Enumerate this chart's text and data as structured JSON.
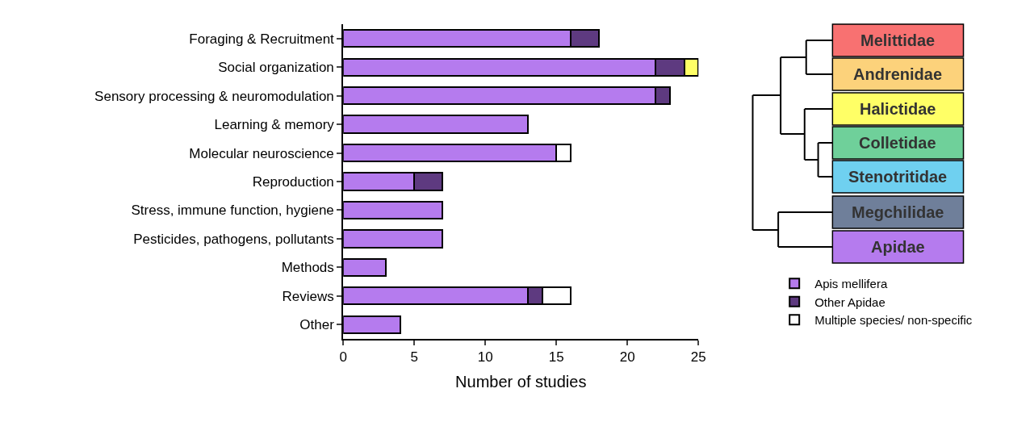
{
  "chart_data": {
    "type": "bar",
    "orientation": "horizontal",
    "stacked": true,
    "xlabel": "Number of studies",
    "categories": [
      "Foraging & Recruitment",
      "Social organization",
      "Sensory processing & neuromodulation",
      "Learning & memory",
      "Molecular neuroscience",
      "Reproduction",
      "Stress, immune function, hygiene",
      "Pesticides, pathogens, pollutants",
      "Methods",
      "Reviews",
      "Other"
    ],
    "series": [
      {
        "name": "Apis mellifera",
        "color": "#b57bee",
        "values": [
          16,
          22,
          22,
          13,
          15,
          5,
          7,
          7,
          3,
          13,
          4
        ]
      },
      {
        "name": "Other Apidae",
        "color": "#5e3a80",
        "values": [
          2,
          2,
          1,
          null,
          null,
          2,
          null,
          null,
          null,
          1,
          null
        ]
      },
      {
        "color": "#ffff66",
        "values": [
          null,
          1,
          null,
          null,
          null,
          null,
          null,
          null,
          null,
          null,
          null
        ]
      },
      {
        "name": "Multiple species/ non-specific",
        "color": "#ffffff",
        "values": [
          null,
          null,
          null,
          null,
          1,
          null,
          null,
          null,
          null,
          2,
          null
        ]
      }
    ],
    "xlim": [
      0,
      25
    ],
    "xticks": [
      0,
      5,
      10,
      15,
      20,
      25
    ],
    "legend": "right",
    "annotations": [
      "Melittidae",
      "Andrenidae",
      "Halictidae",
      "Colletidae",
      "Stenotritidae",
      "Megchilidae",
      "Apidae"
    ]
  }
}
